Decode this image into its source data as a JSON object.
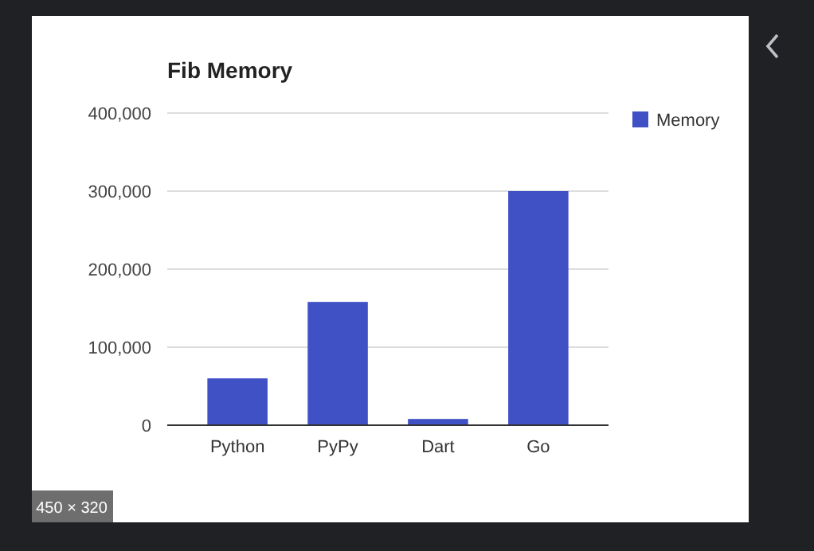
{
  "chart_data": {
    "type": "bar",
    "title": "Fib Memory",
    "categories": [
      "Python",
      "PyPy",
      "Dart",
      "Go"
    ],
    "series": [
      {
        "name": "Memory",
        "color": "#3f51c5",
        "values": [
          60000,
          158000,
          8000,
          300000
        ]
      }
    ],
    "ylim": [
      0,
      400000
    ],
    "yticks": [
      {
        "value": 0,
        "label": "0"
      },
      {
        "value": 100000,
        "label": "100,000"
      },
      {
        "value": 200000,
        "label": "200,000"
      },
      {
        "value": 300000,
        "label": "300,000"
      },
      {
        "value": 400000,
        "label": "400,000"
      }
    ],
    "grid": "y",
    "legend": "right",
    "annotations": [
      "450 × 320"
    ]
  }
}
